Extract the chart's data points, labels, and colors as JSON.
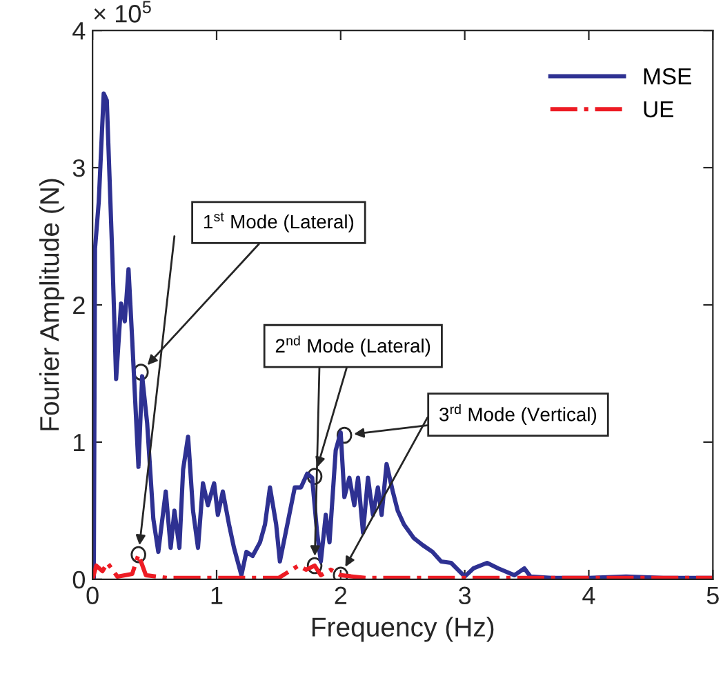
{
  "chart_data": {
    "type": "line",
    "xlabel": "Frequency (Hz)",
    "ylabel": "Fourier Amplitude (N)",
    "xlim": [
      0,
      5
    ],
    "ylim": [
      0,
      4
    ],
    "xticks": [
      0,
      1,
      2,
      3,
      4,
      5
    ],
    "yticks": [
      0,
      1,
      2,
      3,
      4
    ],
    "grid": false,
    "legend": "top right",
    "marker": "none",
    "annotations": [
      "× 10$^{5}$",
      {
        "text": "1$^{st}$ Mode (Lateral)",
        "x": 0.39,
        "y": 1.51
      },
      {
        "text": "2$^{nd}$ Mode (Lateral)",
        "x": 1.79,
        "y": 0.75
      },
      {
        "text": "3$^{rd}$ Mode (Vertical)",
        "x": 2.03,
        "y": 1.05
      }
    ],
    "series": [
      {
        "name": "MSE",
        "color": "#2e3192",
        "line_style": "solid",
        "x": [
          0.01,
          0.02,
          0.05,
          0.09,
          0.115,
          0.16,
          0.19,
          0.23,
          0.26,
          0.29,
          0.32,
          0.37,
          0.4,
          0.44,
          0.49,
          0.53,
          0.59,
          0.63,
          0.66,
          0.7,
          0.73,
          0.77,
          0.81,
          0.85,
          0.89,
          0.93,
          0.98,
          1.01,
          1.05,
          1.1,
          1.14,
          1.2,
          1.24,
          1.29,
          1.35,
          1.39,
          1.43,
          1.48,
          1.51,
          1.57,
          1.63,
          1.68,
          1.73,
          1.77,
          1.81,
          1.84,
          1.88,
          1.91,
          1.96,
          2.0,
          2.03,
          2.07,
          2.11,
          2.14,
          2.18,
          2.22,
          2.26,
          2.3,
          2.33,
          2.37,
          2.42,
          2.46,
          2.51,
          2.59,
          2.66,
          2.74,
          2.81,
          2.89,
          3.0,
          3.07,
          3.18,
          3.27,
          3.4,
          3.48,
          3.53,
          3.7,
          4.0,
          4.3,
          4.6,
          5.0
        ],
        "values": [
          0,
          2.41,
          2.75,
          3.54,
          3.49,
          2.34,
          1.46,
          2.01,
          1.88,
          2.26,
          1.74,
          0.82,
          1.48,
          1.14,
          0.44,
          0.2,
          0.64,
          0.23,
          0.5,
          0.23,
          0.8,
          1.04,
          0.5,
          0.23,
          0.7,
          0.54,
          0.7,
          0.47,
          0.64,
          0.4,
          0.23,
          0.03,
          0.2,
          0.17,
          0.27,
          0.4,
          0.67,
          0.4,
          0.13,
          0.4,
          0.67,
          0.67,
          0.77,
          0.74,
          0.34,
          0.13,
          0.47,
          0.27,
          0.94,
          1.07,
          0.6,
          0.74,
          0.54,
          0.74,
          0.34,
          0.74,
          0.47,
          0.67,
          0.47,
          0.84,
          0.64,
          0.5,
          0.4,
          0.3,
          0.25,
          0.2,
          0.13,
          0.12,
          0.02,
          0.08,
          0.12,
          0.08,
          0.03,
          0.08,
          0.02,
          0.01,
          0.01,
          0.02,
          0.01,
          0.01
        ]
      },
      {
        "name": "UE",
        "color": "#ed1c24",
        "line_style": "dashdot",
        "x": [
          0.0,
          0.03,
          0.08,
          0.12,
          0.2,
          0.32,
          0.37,
          0.43,
          0.6,
          1.0,
          1.5,
          1.66,
          1.72,
          1.79,
          1.84,
          1.92,
          2.0,
          2.2,
          3.0,
          4.0,
          5.0
        ],
        "values": [
          0.0,
          0.1,
          0.06,
          0.12,
          0.02,
          0.04,
          0.18,
          0.03,
          0.01,
          0.01,
          0.01,
          0.1,
          0.07,
          0.1,
          0.03,
          0.07,
          0.03,
          0.01,
          0.01,
          0.01,
          0.01
        ]
      }
    ]
  }
}
